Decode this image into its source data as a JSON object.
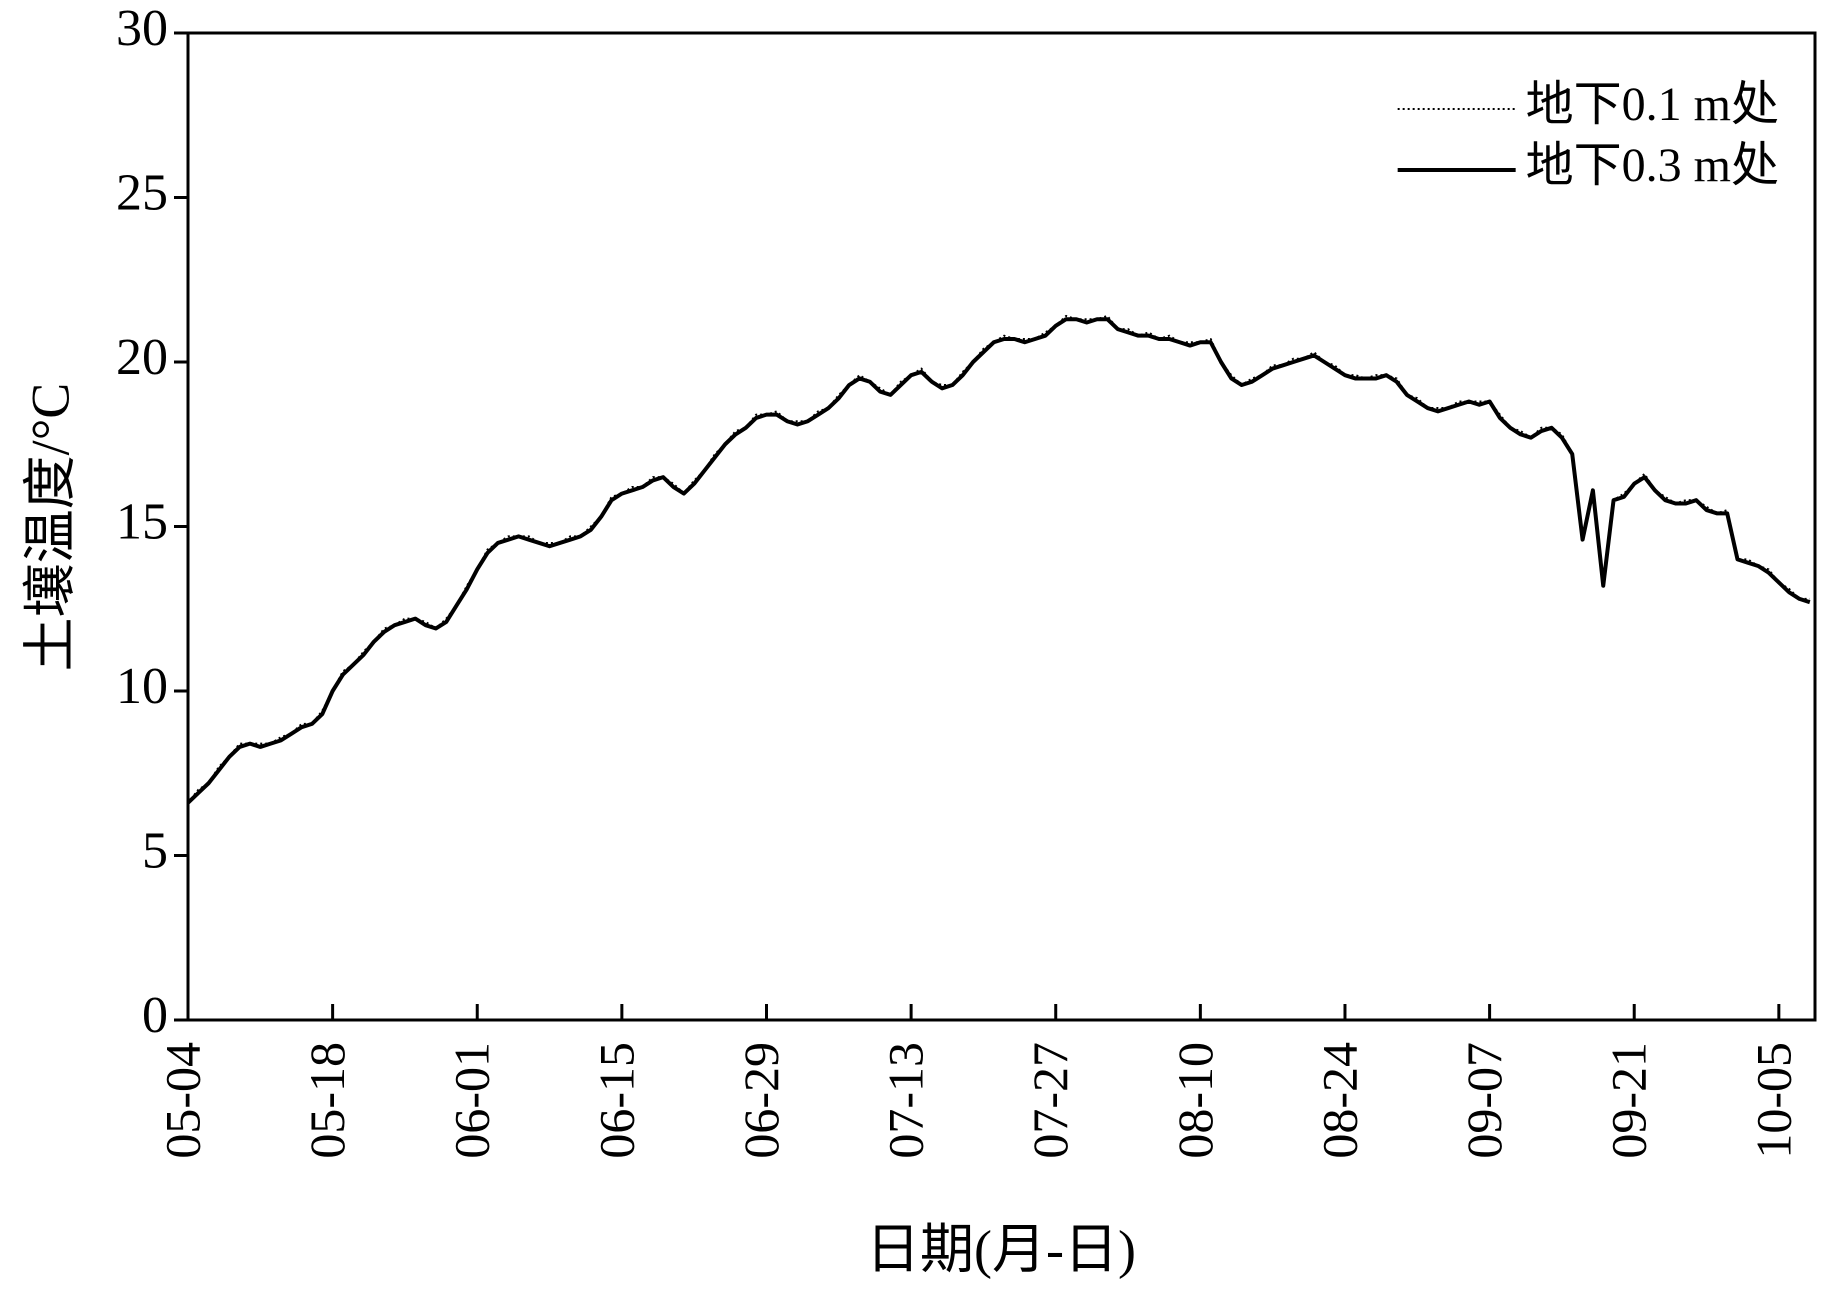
{
  "chart_data": {
    "type": "line",
    "xlabel": "日期(月-日)",
    "ylabel": "土壤温度/°C",
    "categories": [
      "05-04",
      null,
      null,
      null,
      null,
      null,
      null,
      null,
      null,
      null,
      null,
      null,
      null,
      null,
      "05-18",
      null,
      null,
      null,
      null,
      null,
      null,
      null,
      null,
      null,
      null,
      null,
      null,
      null,
      "06-01",
      null,
      null,
      null,
      null,
      null,
      null,
      null,
      null,
      null,
      null,
      null,
      null,
      null,
      "06-15",
      null,
      null,
      null,
      null,
      null,
      null,
      null,
      null,
      null,
      null,
      null,
      null,
      null,
      "06-29",
      null,
      null,
      null,
      null,
      null,
      null,
      null,
      null,
      null,
      null,
      null,
      null,
      null,
      "07-13",
      null,
      null,
      null,
      null,
      null,
      null,
      null,
      null,
      null,
      null,
      null,
      null,
      null,
      "07-27",
      null,
      null,
      null,
      null,
      null,
      null,
      null,
      null,
      null,
      null,
      null,
      null,
      null,
      "08-10",
      null,
      null,
      null,
      null,
      null,
      null,
      null,
      null,
      null,
      null,
      null,
      null,
      null,
      "08-24",
      null,
      null,
      null,
      null,
      null,
      null,
      null,
      null,
      null,
      null,
      null,
      null,
      null,
      "09-07",
      null,
      null,
      null,
      null,
      null,
      null,
      null,
      null,
      null,
      null,
      null,
      null,
      null,
      "09-21",
      null,
      null,
      null,
      null,
      null,
      null,
      null,
      null,
      null,
      null,
      null,
      null,
      null,
      "10-05",
      null,
      null,
      null
    ],
    "series": [
      {
        "name": "地下0.1 m处",
        "color": "#000000",
        "style": "dotted",
        "values": [
          6.6,
          7.0,
          7.2,
          7.7,
          8.0,
          8.4,
          8.4,
          8.4,
          8.4,
          8.6,
          8.7,
          9.0,
          9.0,
          9.4,
          10.0,
          10.6,
          10.8,
          11.2,
          11.5,
          11.9,
          12.0,
          12.2,
          12.2,
          12.1,
          11.9,
          12.2,
          12.6,
          13.2,
          13.7,
          14.3,
          14.5,
          14.7,
          14.7,
          14.7,
          14.5,
          14.5,
          14.5,
          14.7,
          14.7,
          15.0,
          15.3,
          15.9,
          16.0,
          16.2,
          16.2,
          16.5,
          16.5,
          16.3,
          16.0,
          16.4,
          16.7,
          17.2,
          17.5,
          17.9,
          18.0,
          18.4,
          18.4,
          18.5,
          18.2,
          18.2,
          18.2,
          18.5,
          18.6,
          19.0,
          19.3,
          19.6,
          19.4,
          19.2,
          19.0,
          19.4,
          19.6,
          19.8,
          19.4,
          19.3,
          19.3,
          19.7,
          20.0,
          20.4,
          20.6,
          20.8,
          20.7,
          20.7,
          20.7,
          20.9,
          21.1,
          21.4,
          21.3,
          21.3,
          21.3,
          21.4,
          21.0,
          21.0,
          20.8,
          20.9,
          20.7,
          20.8,
          20.6,
          20.6,
          20.6,
          20.7,
          20.0,
          19.6,
          19.3,
          19.5,
          19.6,
          19.9,
          19.9,
          20.1,
          20.1,
          20.3,
          20.0,
          19.9,
          19.6,
          19.6,
          19.5,
          19.6,
          19.6,
          19.5,
          19.0,
          18.9,
          18.6,
          18.6,
          18.6,
          18.8,
          18.8,
          18.8,
          18.8,
          18.4,
          18.0,
          17.9,
          17.7,
          18.0,
          18.0,
          17.8,
          17.2,
          14.7,
          16.1,
          13.3,
          15.8,
          16.0,
          16.3,
          16.6,
          16.1,
          15.9,
          15.7,
          15.8,
          15.8,
          15.6,
          15.4,
          15.5,
          14.0,
          14.0,
          13.8,
          13.7,
          13.3,
          13.1,
          12.8,
          12.8
        ]
      },
      {
        "name": "地下0.3 m处",
        "color": "#000000",
        "style": "solid",
        "values": [
          6.6,
          6.9,
          7.2,
          7.6,
          8.0,
          8.3,
          8.4,
          8.3,
          8.4,
          8.5,
          8.7,
          8.9,
          9.0,
          9.3,
          10.0,
          10.5,
          10.8,
          11.1,
          11.5,
          11.8,
          12.0,
          12.1,
          12.2,
          12.0,
          11.9,
          12.1,
          12.6,
          13.1,
          13.7,
          14.2,
          14.5,
          14.6,
          14.7,
          14.6,
          14.5,
          14.4,
          14.5,
          14.6,
          14.7,
          14.9,
          15.3,
          15.8,
          16.0,
          16.1,
          16.2,
          16.4,
          16.5,
          16.2,
          16.0,
          16.3,
          16.7,
          17.1,
          17.5,
          17.8,
          18.0,
          18.3,
          18.4,
          18.4,
          18.2,
          18.1,
          18.2,
          18.4,
          18.6,
          18.9,
          19.3,
          19.5,
          19.4,
          19.1,
          19.0,
          19.3,
          19.6,
          19.7,
          19.4,
          19.2,
          19.3,
          19.6,
          20.0,
          20.3,
          20.6,
          20.7,
          20.7,
          20.6,
          20.7,
          20.8,
          21.1,
          21.3,
          21.3,
          21.2,
          21.3,
          21.3,
          21.0,
          20.9,
          20.8,
          20.8,
          20.7,
          20.7,
          20.6,
          20.5,
          20.6,
          20.6,
          20.0,
          19.5,
          19.3,
          19.4,
          19.6,
          19.8,
          19.9,
          20.0,
          20.1,
          20.2,
          20.0,
          19.8,
          19.6,
          19.5,
          19.5,
          19.5,
          19.6,
          19.4,
          19.0,
          18.8,
          18.6,
          18.5,
          18.6,
          18.7,
          18.8,
          18.7,
          18.8,
          18.3,
          18.0,
          17.8,
          17.7,
          17.9,
          18.0,
          17.7,
          17.2,
          14.6,
          16.1,
          13.2,
          15.8,
          15.9,
          16.3,
          16.5,
          16.1,
          15.8,
          15.7,
          15.7,
          15.8,
          15.5,
          15.4,
          15.4,
          14.0,
          13.9,
          13.8,
          13.6,
          13.3,
          13.0,
          12.8,
          12.7
        ]
      }
    ],
    "ylim": [
      0,
      30
    ],
    "yticks": [
      0,
      5,
      10,
      15,
      20,
      25,
      30
    ],
    "legend": "upper right",
    "grid": false
  }
}
